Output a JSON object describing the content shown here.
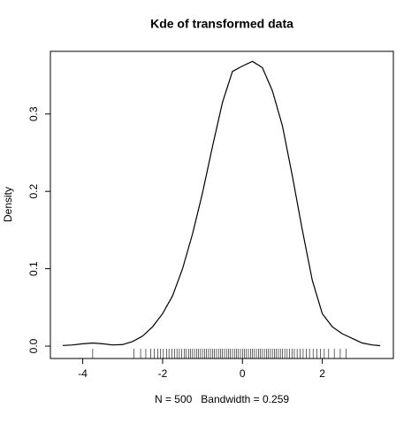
{
  "chart_data": {
    "type": "line",
    "title": "Kde of transformed data",
    "xlabel": "N = 500   Bandwidth = 0.259",
    "ylabel": "Density",
    "x": [
      -4.5,
      -4.25,
      -4.0,
      -3.75,
      -3.5,
      -3.25,
      -3.0,
      -2.75,
      -2.5,
      -2.25,
      -2.0,
      -1.75,
      -1.5,
      -1.25,
      -1.0,
      -0.75,
      -0.5,
      -0.25,
      0,
      0.25,
      0.5,
      0.75,
      1.0,
      1.25,
      1.5,
      1.75,
      2.0,
      2.25,
      2.5,
      2.75,
      3.0,
      3.25,
      3.45
    ],
    "series": [
      {
        "name": "density",
        "color": "#000000",
        "values": [
          0.0008,
          0.0015,
          0.003,
          0.004,
          0.003,
          0.0015,
          0.002,
          0.006,
          0.013,
          0.025,
          0.042,
          0.065,
          0.1,
          0.145,
          0.198,
          0.258,
          0.315,
          0.355,
          0.362,
          0.368,
          0.36,
          0.33,
          0.285,
          0.22,
          0.15,
          0.085,
          0.042,
          0.025,
          0.016,
          0.01,
          0.004,
          0.0015,
          0.0006
        ]
      }
    ],
    "rug": [
      -3.75,
      -2.72,
      -2.55,
      -2.42,
      -2.3,
      -2.21,
      -2.12,
      -2.05,
      -1.98,
      -1.9,
      -1.84,
      -1.77,
      -1.7,
      -1.64,
      -1.58,
      -1.52,
      -1.46,
      -1.41,
      -1.35,
      -1.3,
      -1.25,
      -1.2,
      -1.15,
      -1.1,
      -1.05,
      -1.0,
      -0.95,
      -0.9,
      -0.85,
      -0.8,
      -0.75,
      -0.7,
      -0.65,
      -0.6,
      -0.55,
      -0.5,
      -0.45,
      -0.4,
      -0.35,
      -0.3,
      -0.25,
      -0.2,
      -0.15,
      -0.1,
      -0.05,
      0.0,
      0.05,
      0.1,
      0.15,
      0.2,
      0.25,
      0.3,
      0.35,
      0.4,
      0.45,
      0.5,
      0.55,
      0.6,
      0.65,
      0.7,
      0.75,
      0.8,
      0.85,
      0.9,
      0.95,
      1.0,
      1.06,
      1.12,
      1.18,
      1.24,
      1.3,
      1.37,
      1.44,
      1.52,
      1.6,
      1.68,
      1.77,
      1.86,
      1.95,
      2.05,
      2.16,
      2.3,
      2.45,
      2.6
    ],
    "xlim": [
      -4.81,
      3.78
    ],
    "ylim": [
      -0.016,
      0.381
    ],
    "xticks": [
      -4,
      -2,
      0,
      2
    ],
    "yticks": [
      {
        "value": 0,
        "label": "0.0"
      },
      0.1,
      0.2,
      0.3
    ]
  }
}
